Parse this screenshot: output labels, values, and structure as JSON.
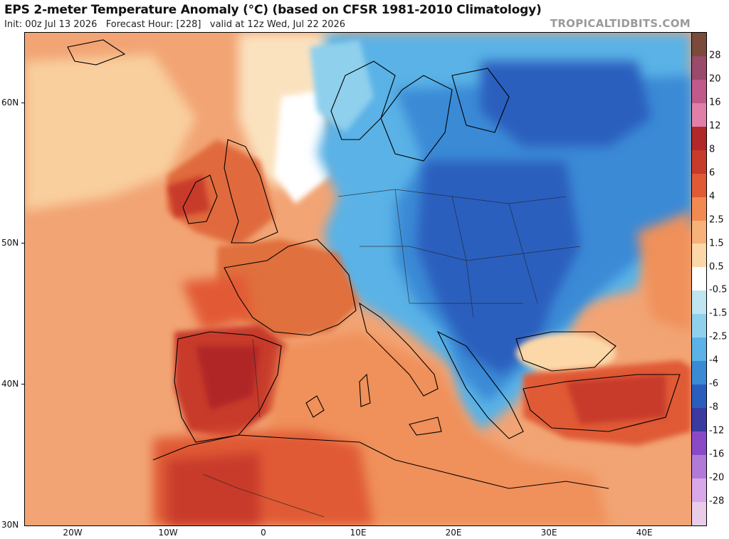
{
  "header": {
    "title": "EPS 2-meter Temperature Anomaly (°C) (based on CFSR 1981-2010 Climatology)",
    "init": "Init: 00z Jul 13 2026",
    "forecast_hour": "Forecast Hour: [228]",
    "valid": "valid at 12z Wed, Jul 22 2026",
    "brand": "TROPICALTIDBITS.COM"
  },
  "axes": {
    "lat_labels": [
      "60N",
      "50N",
      "40N",
      "30N"
    ],
    "lon_labels": [
      "20W",
      "10W",
      "0",
      "10E",
      "20E",
      "30E",
      "40E"
    ]
  },
  "colorbar": {
    "labels": [
      "28",
      "20",
      "16",
      "12",
      "8",
      "6",
      "4",
      "2.5",
      "1.5",
      "0.5",
      "-0.5",
      "-1.5",
      "-2.5",
      "-4",
      "-6",
      "-8",
      "-12",
      "-16",
      "-20",
      "-28"
    ],
    "colors": [
      "#7a4a3a",
      "#9a4a6a",
      "#c05a8a",
      "#e080a8",
      "#b02828",
      "#c83a2a",
      "#e05a34",
      "#f08a50",
      "#f6b278",
      "#fcd8a8",
      "#ffffff",
      "#bfe6f0",
      "#8fd0ec",
      "#5ab2e6",
      "#3a8ad6",
      "#2a5ebe",
      "#3a3aa0",
      "#8a4ac8",
      "#b07ad6",
      "#d8a8e8",
      "#e8cce8"
    ]
  },
  "regions": {
    "iberia": "strong warm anomaly",
    "north_africa": "warm anomaly",
    "uk_france": "warm anomaly",
    "scandinavia": "cool anomaly",
    "eastern_europe": "strong cool anomaly",
    "balkans": "strong cool anomaly",
    "turkey": "warm anomaly"
  }
}
